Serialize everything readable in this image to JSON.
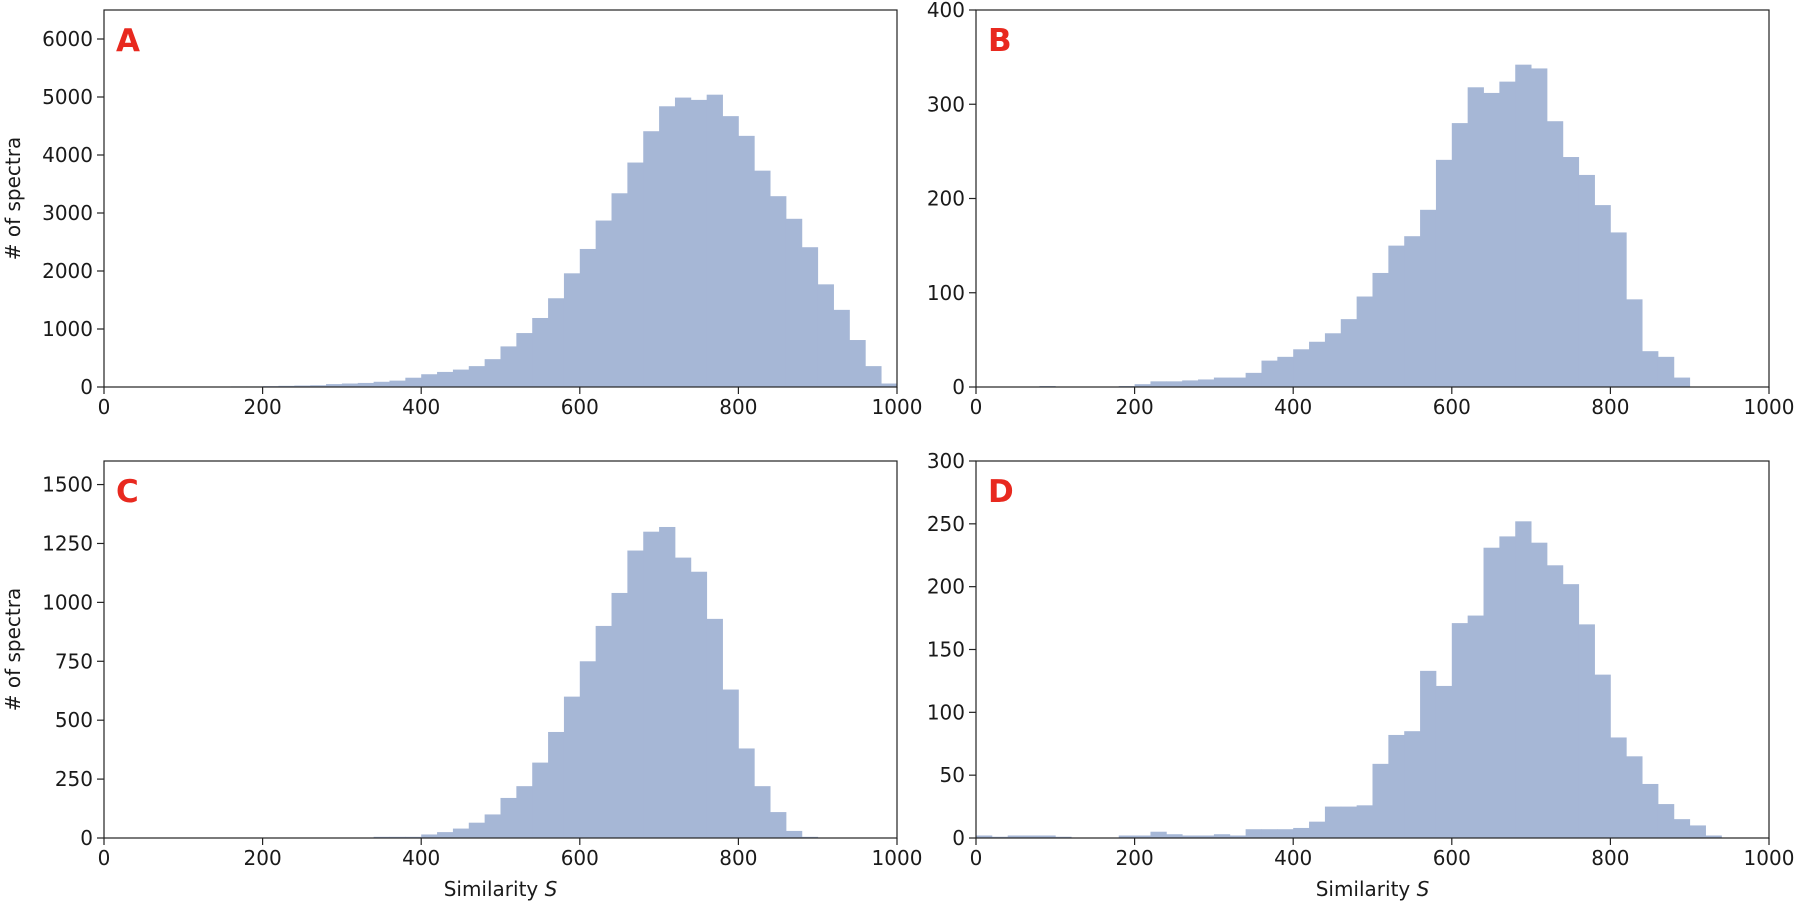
{
  "colors": {
    "bar": "#a6b7d6",
    "letter": "#e8291f",
    "axis": "#222222"
  },
  "chart_data": [
    {
      "type": "bar",
      "panel": "A",
      "xlabel": "",
      "ylabel": "# of spectra",
      "xlim": [
        0,
        1000
      ],
      "ylim": [
        0,
        6500
      ],
      "xticks": [
        "0",
        "200",
        "400",
        "600",
        "800",
        "1000"
      ],
      "yticks": [
        "0",
        "1000",
        "2000",
        "3000",
        "4000",
        "5000",
        "6000"
      ],
      "bin_width": 20,
      "bin_start": 0,
      "values": [
        0,
        0,
        0,
        0,
        5,
        0,
        0,
        0,
        10,
        10,
        15,
        20,
        25,
        30,
        50,
        60,
        70,
        90,
        110,
        160,
        220,
        260,
        300,
        360,
        480,
        700,
        930,
        1190,
        1530,
        1960,
        2380,
        2870,
        3340,
        3870,
        4410,
        4840,
        4990,
        4950,
        5040,
        4670,
        4330,
        3730,
        3290,
        2900,
        2410,
        1770,
        1330,
        810,
        360,
        60
      ]
    },
    {
      "type": "bar",
      "panel": "B",
      "xlabel": "",
      "ylabel": "",
      "xlim": [
        0,
        1000
      ],
      "ylim": [
        0,
        400
      ],
      "xticks": [
        "0",
        "200",
        "400",
        "600",
        "800",
        "1000"
      ],
      "yticks": [
        "0",
        "100",
        "200",
        "300",
        "400"
      ],
      "bin_width": 20,
      "bin_start": 0,
      "values": [
        0,
        0,
        0,
        0,
        1,
        0,
        0,
        0,
        0,
        1,
        3,
        6,
        6,
        7,
        8,
        10,
        10,
        15,
        28,
        32,
        40,
        48,
        57,
        72,
        96,
        121,
        150,
        160,
        188,
        241,
        280,
        318,
        312,
        324,
        342,
        338,
        282,
        244,
        225,
        193,
        164,
        93,
        38,
        32,
        10,
        0,
        0,
        0,
        0,
        0
      ]
    },
    {
      "type": "bar",
      "panel": "C",
      "xlabel": "Similarity S",
      "ylabel": "# of spectra",
      "xlim": [
        0,
        1000
      ],
      "ylim": [
        0,
        1600
      ],
      "xticks": [
        "0",
        "200",
        "400",
        "600",
        "800",
        "1000"
      ],
      "yticks": [
        "0",
        "250",
        "500",
        "750",
        "1000",
        "1250",
        "1500"
      ],
      "bin_width": 20,
      "bin_start": 0,
      "values": [
        0,
        0,
        0,
        0,
        0,
        2,
        0,
        0,
        0,
        0,
        0,
        0,
        2,
        0,
        0,
        0,
        2,
        5,
        5,
        5,
        15,
        25,
        40,
        65,
        100,
        170,
        220,
        320,
        450,
        600,
        750,
        900,
        1040,
        1220,
        1300,
        1320,
        1190,
        1130,
        930,
        630,
        380,
        220,
        110,
        30,
        5,
        0,
        0,
        0,
        0,
        0
      ]
    },
    {
      "type": "bar",
      "panel": "D",
      "xlabel": "Similarity S",
      "ylabel": "",
      "xlim": [
        0,
        1000
      ],
      "ylim": [
        0,
        300
      ],
      "xticks": [
        "0",
        "200",
        "400",
        "600",
        "800",
        "1000"
      ],
      "yticks": [
        "0",
        "50",
        "100",
        "150",
        "200",
        "250",
        "300"
      ],
      "bin_width": 20,
      "bin_start": 0,
      "values": [
        2,
        1,
        2,
        2,
        2,
        1,
        0,
        0,
        0,
        2,
        2,
        5,
        3,
        2,
        2,
        3,
        2,
        7,
        7,
        7,
        8,
        13,
        25,
        25,
        26,
        59,
        82,
        85,
        133,
        121,
        171,
        177,
        231,
        240,
        252,
        235,
        217,
        202,
        170,
        130,
        80,
        65,
        43,
        27,
        15,
        10,
        2,
        0,
        0,
        0
      ]
    }
  ]
}
